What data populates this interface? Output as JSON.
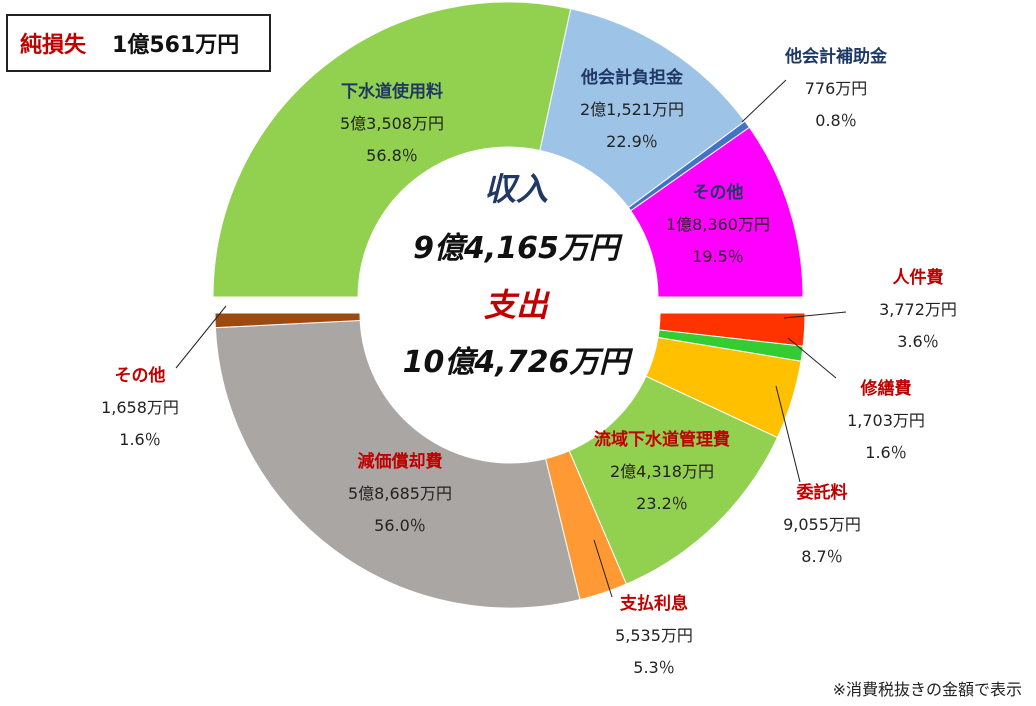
{
  "net_loss": {
    "label": "純損失",
    "value": "1億561万円"
  },
  "footnote": "※消費税抜きの金額で表示",
  "center": {
    "income_label": "収入",
    "income_total": "9億4,165万円",
    "expense_label": "支出",
    "expense_total": "10億4,726万円"
  },
  "colors": {
    "income_name": "#1f3864",
    "expense_name": "#c00000",
    "income_center": "#1f3864",
    "expense_center": "#c00000"
  },
  "chart_data": {
    "type": "donut",
    "halves": [
      {
        "name": "収入",
        "total_man_yen": 94165,
        "slices": [
          {
            "name": "下水道使用料",
            "value_text": "5億3,508万円",
            "percent_text": "56.8％",
            "value_man_yen": 53508,
            "percent": 56.8,
            "color": "#92d050"
          },
          {
            "name": "他会計負担金",
            "value_text": "2億1,521万円",
            "percent_text": "22.9％",
            "value_man_yen": 21521,
            "percent": 22.9,
            "color": "#9dc3e6"
          },
          {
            "name": "他会計補助金",
            "value_text": "776万円",
            "percent_text": "0.8％",
            "value_man_yen": 776,
            "percent": 0.8,
            "color": "#4472c4"
          },
          {
            "name": "その他",
            "value_text": "1億8,360万円",
            "percent_text": "19.5％",
            "value_man_yen": 18360,
            "percent": 19.5,
            "color": "#ff00ff"
          }
        ]
      },
      {
        "name": "支出",
        "total_man_yen": 104726,
        "slices": [
          {
            "name": "人件費",
            "value_text": "3,772万円",
            "percent_text": "3.6％",
            "value_man_yen": 3772,
            "percent": 3.6,
            "color": "#ff3300"
          },
          {
            "name": "修繕費",
            "value_text": "1,703万円",
            "percent_text": "1.6％",
            "value_man_yen": 1703,
            "percent": 1.6,
            "color": "#33cc33"
          },
          {
            "name": "委託料",
            "value_text": "9,055万円",
            "percent_text": "8.7％",
            "value_man_yen": 9055,
            "percent": 8.7,
            "color": "#ffc000"
          },
          {
            "name": "流域下水道管理費",
            "value_text": "2億4,318万円",
            "percent_text": "23.2％",
            "value_man_yen": 24318,
            "percent": 23.2,
            "color": "#92d050"
          },
          {
            "name": "支払利息",
            "value_text": "5,535万円",
            "percent_text": "5.3％",
            "value_man_yen": 5535,
            "percent": 5.3,
            "color": "#ff9933"
          },
          {
            "name": "減価償却費",
            "value_text": "5億8,685万円",
            "percent_text": "56.0％",
            "value_man_yen": 58685,
            "percent": 56.0,
            "color": "#aaa6a3"
          },
          {
            "name": "その他",
            "value_text": "1,658万円",
            "percent_text": "1.6％",
            "value_man_yen": 1658,
            "percent": 1.6,
            "color": "#9c4a10"
          }
        ]
      }
    ]
  }
}
